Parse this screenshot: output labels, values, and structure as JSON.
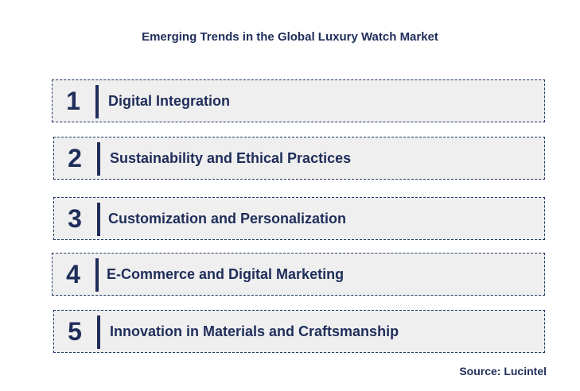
{
  "title": "Emerging Trends in the Global Luxury Watch Market",
  "trends": [
    {
      "number": "1",
      "label": "Digital Integration"
    },
    {
      "number": "2",
      "label": "Sustainability and Ethical Practices"
    },
    {
      "number": "3",
      "label": "Customization and Personalization"
    },
    {
      "number": "4",
      "label": "E-Commerce and Digital Marketing"
    },
    {
      "number": "5",
      "label": "Innovation in Materials and Craftsmanship"
    }
  ],
  "source": "Source: Lucintel",
  "colors": {
    "text": "#1f2d5a",
    "box_fill": "#efefef",
    "box_border": "#1f3864"
  }
}
